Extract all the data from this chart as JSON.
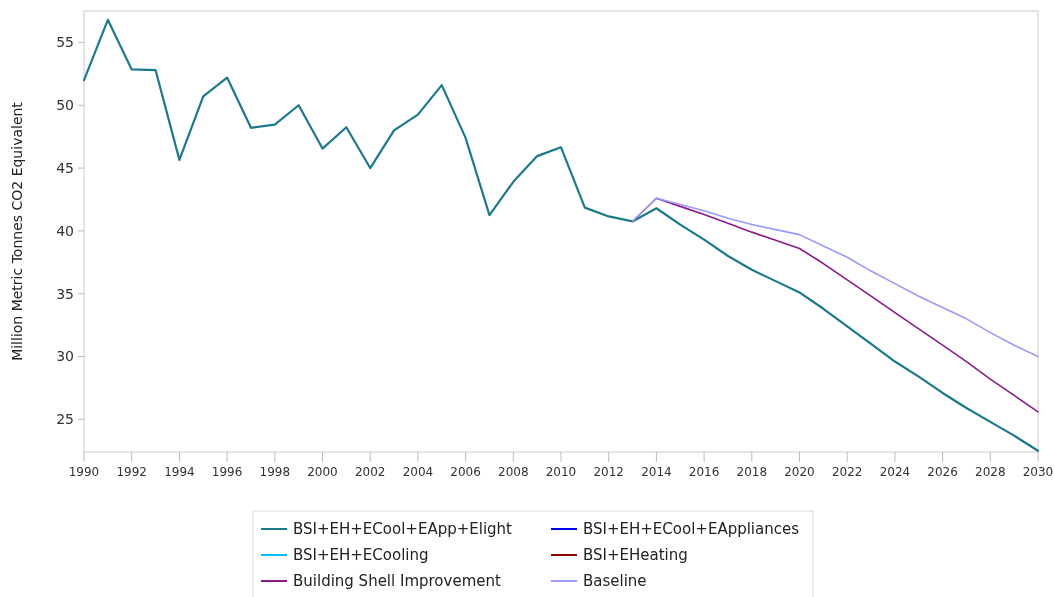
{
  "chart_data": {
    "type": "line",
    "ylabel": "Million Metric Tonnes CO2 Equivalent",
    "x": [
      1990,
      1991,
      1992,
      1993,
      1994,
      1995,
      1996,
      1997,
      1998,
      1999,
      2000,
      2001,
      2002,
      2003,
      2004,
      2005,
      2006,
      2007,
      2008,
      2009,
      2010,
      2011,
      2012,
      2013,
      2014,
      2015,
      2016,
      2017,
      2018,
      2019,
      2020,
      2021,
      2022,
      2023,
      2024,
      2025,
      2026,
      2027,
      2028,
      2029,
      2030
    ],
    "series": [
      {
        "name": "BSI+EH+ECool+EApp+Elight",
        "color": "#1a7a8c",
        "values": [
          52.0,
          56.8,
          52.85,
          52.8,
          45.65,
          50.7,
          52.2,
          48.2,
          48.45,
          50.0,
          46.55,
          48.25,
          45.0,
          48.0,
          49.25,
          51.6,
          47.4,
          41.25,
          43.9,
          45.95,
          46.65,
          41.85,
          41.15,
          40.75,
          41.8,
          40.5,
          39.3,
          38.0,
          36.9,
          36.0,
          35.1,
          33.8,
          32.4,
          31.0,
          29.6,
          28.4,
          27.1,
          25.9,
          24.8,
          23.7,
          22.5
        ]
      },
      {
        "name": "BSI+EH+ECool+EAppliances",
        "color": "#0000ff",
        "values": [
          null,
          null,
          null,
          null,
          null,
          null,
          null,
          null,
          null,
          null,
          null,
          null,
          null,
          null,
          null,
          null,
          null,
          null,
          null,
          null,
          null,
          null,
          null,
          null,
          null,
          null,
          null,
          null,
          null,
          null,
          null,
          null,
          null,
          null,
          null,
          null,
          null,
          null,
          null,
          null,
          null
        ]
      },
      {
        "name": "BSI+EH+ECooling",
        "color": "#00bfff",
        "values": [
          null,
          null,
          null,
          null,
          null,
          null,
          null,
          null,
          null,
          null,
          null,
          null,
          null,
          null,
          null,
          null,
          null,
          null,
          null,
          null,
          null,
          null,
          null,
          null,
          null,
          null,
          null,
          null,
          null,
          null,
          null,
          null,
          null,
          null,
          null,
          null,
          null,
          null,
          null,
          null,
          null
        ]
      },
      {
        "name": "BSI+EHeating",
        "color": "#8b0000",
        "values": [
          null,
          null,
          null,
          null,
          null,
          null,
          null,
          null,
          null,
          null,
          null,
          null,
          null,
          null,
          null,
          null,
          null,
          null,
          null,
          null,
          null,
          null,
          null,
          null,
          null,
          null,
          null,
          null,
          null,
          null,
          null,
          null,
          null,
          null,
          null,
          null,
          null,
          null,
          null,
          null,
          null
        ]
      },
      {
        "name": "Building Shell Improvement",
        "color": "#8b1a8b",
        "values": [
          null,
          null,
          null,
          null,
          null,
          null,
          null,
          null,
          null,
          null,
          null,
          null,
          null,
          null,
          null,
          null,
          null,
          null,
          null,
          null,
          null,
          null,
          null,
          40.75,
          42.6,
          41.95,
          41.3,
          40.6,
          39.9,
          39.25,
          38.6,
          37.4,
          36.1,
          34.8,
          33.5,
          32.2,
          30.9,
          29.6,
          28.2,
          26.9,
          25.6
        ]
      },
      {
        "name": "Baseline",
        "color": "#9999ff",
        "values": [
          null,
          null,
          null,
          null,
          null,
          null,
          null,
          null,
          null,
          null,
          null,
          null,
          null,
          null,
          null,
          null,
          null,
          null,
          null,
          null,
          null,
          null,
          null,
          40.75,
          42.6,
          42.1,
          41.6,
          41.0,
          40.5,
          40.1,
          39.7,
          38.8,
          37.9,
          36.8,
          35.8,
          34.8,
          33.9,
          33.0,
          31.9,
          30.9,
          30.0
        ]
      }
    ],
    "xlim": [
      1990,
      2030
    ],
    "xticks": [
      1990,
      1992,
      1994,
      1996,
      1998,
      2000,
      2002,
      2004,
      2006,
      2008,
      2010,
      2012,
      2014,
      2016,
      2018,
      2020,
      2022,
      2024,
      2026,
      2028,
      2030
    ],
    "ylim": [
      22.4,
      57.5
    ],
    "yticks": [
      25,
      30,
      35,
      40,
      45,
      50,
      55
    ],
    "grid": false,
    "legend": "bottom",
    "marker": "none",
    "line_style": "solid"
  }
}
